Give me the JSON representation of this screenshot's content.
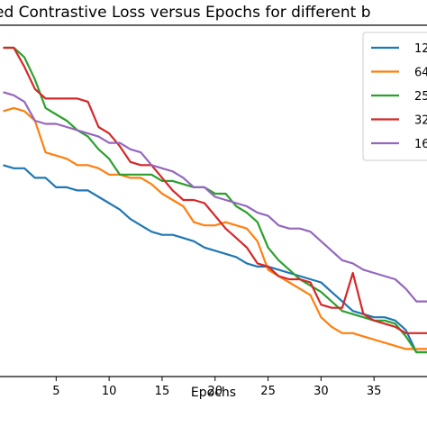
{
  "chart_data": {
    "type": "line",
    "title": "ed Contrastive Loss versus Epochs for different b",
    "xlabel": "Epochs",
    "ylabel": "",
    "xlim": [
      -0.3,
      40
    ],
    "ylim": [
      0,
      100
    ],
    "xticks": [
      5,
      10,
      15,
      20,
      25,
      30,
      35
    ],
    "grid": false,
    "legend_position": "top-right",
    "series": [
      {
        "name": "12",
        "color": "#1f77b4",
        "x": [
          0,
          1,
          2,
          3,
          4,
          5,
          6,
          7,
          8,
          9,
          10,
          11,
          12,
          13,
          14,
          15,
          16,
          17,
          18,
          19,
          20,
          21,
          22,
          23,
          24,
          25,
          26,
          27,
          28,
          29,
          30,
          31,
          32,
          33,
          34,
          35,
          36,
          37,
          38,
          39,
          40
        ],
        "values": [
          61,
          60,
          60,
          57,
          57,
          54,
          54,
          53,
          53,
          51,
          49,
          47,
          44,
          42,
          40,
          39,
          39,
          38,
          37,
          35,
          34,
          33,
          32,
          30,
          29,
          29,
          28,
          27,
          26,
          25,
          24,
          21,
          18,
          15,
          14,
          13,
          13,
          12,
          9,
          2,
          2
        ]
      },
      {
        "name": "64",
        "color": "#ff7f0e",
        "x": [
          0,
          1,
          2,
          3,
          4,
          5,
          6,
          7,
          8,
          9,
          10,
          11,
          12,
          13,
          14,
          15,
          16,
          17,
          18,
          19,
          20,
          21,
          22,
          23,
          24,
          25,
          26,
          27,
          28,
          29,
          30,
          31,
          32,
          33,
          34,
          35,
          36,
          37,
          38,
          39,
          40
        ],
        "values": [
          78,
          79,
          78,
          75,
          65,
          64,
          63,
          61,
          61,
          60,
          58,
          58,
          57,
          57,
          55,
          52,
          50,
          48,
          43,
          42,
          42,
          43,
          42,
          41,
          37,
          28,
          26,
          24,
          22,
          20,
          13,
          10,
          8,
          8,
          7,
          6,
          5,
          4,
          3,
          3,
          3
        ]
      },
      {
        "name": "25",
        "color": "#2ca02c",
        "x": [
          0,
          1,
          2,
          3,
          4,
          5,
          6,
          7,
          8,
          9,
          10,
          11,
          12,
          13,
          14,
          15,
          16,
          17,
          18,
          19,
          20,
          21,
          22,
          23,
          24,
          25,
          26,
          27,
          28,
          29,
          30,
          31,
          32,
          33,
          34,
          35,
          36,
          37,
          38,
          39,
          40
        ],
        "values": [
          98,
          98,
          95,
          88,
          79,
          77,
          75,
          72,
          70,
          66,
          63,
          58,
          58,
          58,
          58,
          56,
          56,
          55,
          54,
          54,
          52,
          52,
          48,
          46,
          43,
          35,
          31,
          28,
          25,
          23,
          21,
          18,
          15,
          14,
          13,
          12,
          12,
          11,
          7,
          2,
          2
        ]
      },
      {
        "name": "32",
        "color": "#d62728",
        "x": [
          0,
          1,
          2,
          3,
          4,
          5,
          6,
          7,
          8,
          9,
          10,
          11,
          12,
          13,
          14,
          15,
          16,
          17,
          18,
          19,
          20,
          21,
          22,
          23,
          24,
          25,
          26,
          27,
          28,
          29,
          30,
          31,
          32,
          33,
          34,
          35,
          36,
          37,
          38,
          39,
          40
        ],
        "values": [
          98,
          98,
          92,
          85,
          82,
          82,
          82,
          82,
          81,
          73,
          71,
          67,
          62,
          61,
          61,
          57,
          53,
          50,
          50,
          49,
          45,
          41,
          38,
          35,
          30,
          29,
          26,
          25,
          25,
          24,
          17,
          16,
          16,
          27,
          14,
          12,
          11,
          10,
          8,
          8,
          8
        ]
      },
      {
        "name": "16",
        "color": "#9467bd",
        "x": [
          0,
          1,
          2,
          3,
          4,
          5,
          6,
          7,
          8,
          9,
          10,
          11,
          12,
          13,
          14,
          15,
          16,
          17,
          18,
          19,
          20,
          21,
          22,
          23,
          24,
          25,
          26,
          27,
          28,
          29,
          30,
          31,
          32,
          33,
          34,
          35,
          36,
          37,
          38,
          39,
          40
        ],
        "values": [
          84,
          83,
          81,
          75,
          74,
          74,
          73,
          72,
          71,
          70,
          68,
          68,
          66,
          65,
          61,
          60,
          59,
          57,
          54,
          54,
          51,
          50,
          49,
          48,
          46,
          45,
          42,
          41,
          41,
          40,
          37,
          34,
          31,
          30,
          28,
          27,
          26,
          25,
          22,
          18,
          18
        ]
      }
    ]
  }
}
